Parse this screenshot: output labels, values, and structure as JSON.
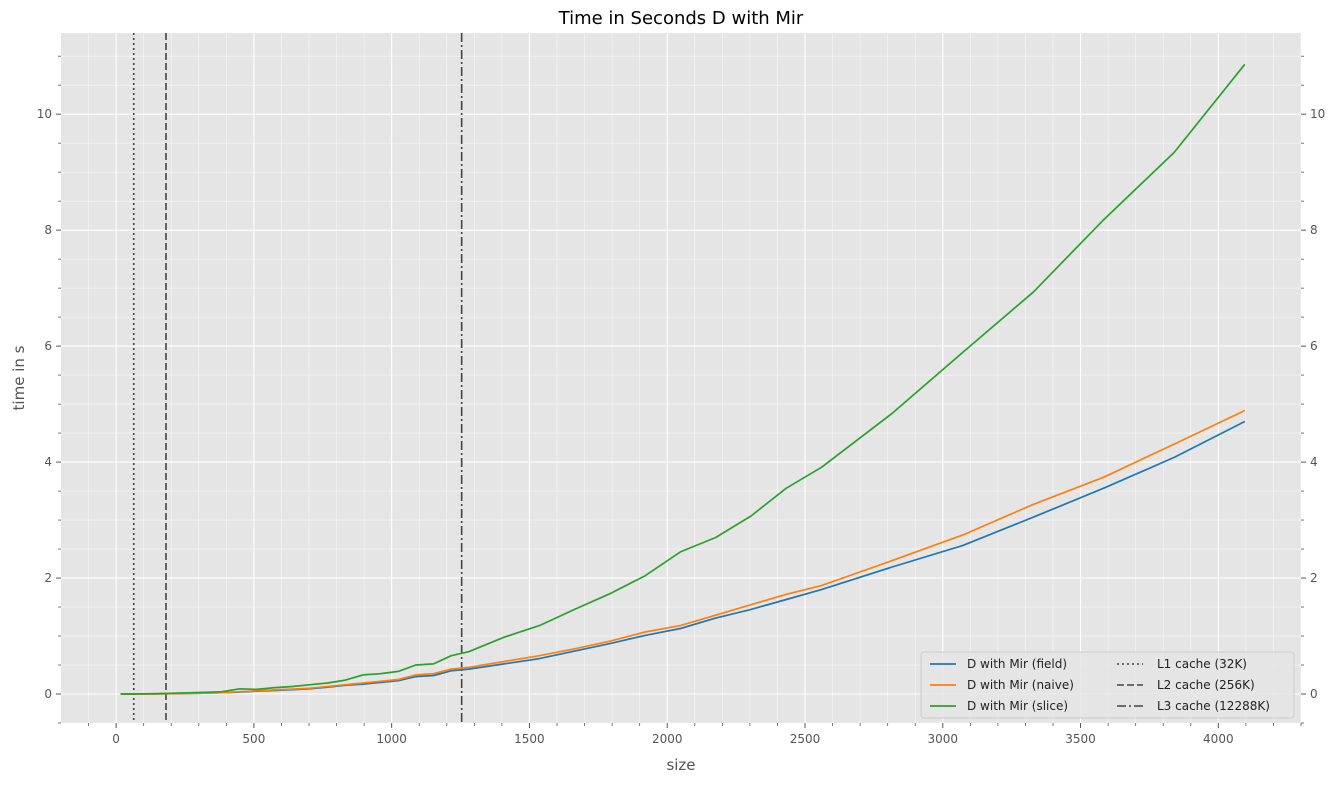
{
  "chart_data": {
    "type": "line",
    "title": "Time in Seconds D with Mir",
    "xlabel": "size",
    "ylabel": "time in s",
    "xlim": [
      -200,
      4300
    ],
    "ylim": [
      -0.5,
      11.4
    ],
    "grid": true,
    "legend_position": "bottom-right",
    "x_ticks": [
      0,
      500,
      1000,
      1500,
      2000,
      2500,
      3000,
      3500,
      4000
    ],
    "x_tick_labels": [
      "0",
      "500",
      "1000",
      "1500",
      "2000",
      "2500",
      "3000",
      "3500",
      "4000"
    ],
    "y_ticks": [
      0,
      2,
      4,
      6,
      8,
      10
    ],
    "y_tick_labels": [
      "0",
      "2",
      "4",
      "6",
      "8",
      "10"
    ],
    "series": [
      {
        "name": "D with Mir (field)",
        "color": "#1f77b4",
        "x": [
          16,
          64,
          128,
          192,
          256,
          320,
          384,
          448,
          512,
          576,
          640,
          704,
          768,
          832,
          896,
          960,
          1024,
          1088,
          1152,
          1216,
          1280,
          1408,
          1536,
          1664,
          1792,
          1920,
          2048,
          2176,
          2304,
          2432,
          2560,
          2816,
          3072,
          3328,
          3584,
          3840,
          4096
        ],
        "y": [
          0.0,
          0.0,
          0.0,
          0.005,
          0.01,
          0.015,
          0.025,
          0.035,
          0.05,
          0.06,
          0.075,
          0.09,
          0.12,
          0.15,
          0.17,
          0.2,
          0.23,
          0.3,
          0.32,
          0.4,
          0.43,
          0.52,
          0.61,
          0.74,
          0.87,
          1.01,
          1.13,
          1.31,
          1.46,
          1.63,
          1.8,
          2.19,
          2.56,
          3.05,
          3.55,
          4.08,
          4.7
        ]
      },
      {
        "name": "D with Mir (naive)",
        "color": "#ff7f0e",
        "x": [
          16,
          64,
          128,
          192,
          256,
          320,
          384,
          448,
          512,
          576,
          640,
          704,
          768,
          832,
          896,
          960,
          1024,
          1088,
          1152,
          1216,
          1280,
          1408,
          1536,
          1664,
          1792,
          1920,
          2048,
          2176,
          2304,
          2432,
          2560,
          2816,
          3072,
          3328,
          3584,
          3840,
          4096
        ],
        "y": [
          0.0,
          0.0,
          0.0,
          0.005,
          0.01,
          0.015,
          0.025,
          0.04,
          0.055,
          0.07,
          0.085,
          0.1,
          0.13,
          0.16,
          0.19,
          0.22,
          0.25,
          0.33,
          0.35,
          0.43,
          0.46,
          0.56,
          0.66,
          0.78,
          0.91,
          1.07,
          1.18,
          1.36,
          1.54,
          1.72,
          1.87,
          2.3,
          2.74,
          3.27,
          3.74,
          4.31,
          4.89
        ]
      },
      {
        "name": "D with Mir (slice)",
        "color": "#2ca02c",
        "x": [
          16,
          64,
          128,
          192,
          256,
          320,
          384,
          448,
          512,
          576,
          640,
          704,
          768,
          832,
          896,
          960,
          1024,
          1088,
          1152,
          1216,
          1280,
          1408,
          1536,
          1664,
          1792,
          1920,
          2048,
          2176,
          2304,
          2432,
          2560,
          2816,
          3072,
          3328,
          3584,
          3840,
          4096
        ],
        "y": [
          0.0,
          0.0,
          0.005,
          0.01,
          0.02,
          0.03,
          0.04,
          0.09,
          0.08,
          0.11,
          0.13,
          0.16,
          0.19,
          0.24,
          0.33,
          0.35,
          0.39,
          0.5,
          0.52,
          0.66,
          0.73,
          0.98,
          1.18,
          1.46,
          1.73,
          2.04,
          2.45,
          2.7,
          3.07,
          3.55,
          3.91,
          4.84,
          5.89,
          6.93,
          8.18,
          9.34,
          10.86
        ]
      }
    ],
    "cache_lines": [
      {
        "name": "L1 cache (32K)",
        "x": 64,
        "style": "dotted",
        "color": "#444444"
      },
      {
        "name": "L2 cache (256K)",
        "x": 181,
        "style": "dashed",
        "color": "#444444"
      },
      {
        "name": "L3 cache (12288K)",
        "x": 1254,
        "style": "dashdot",
        "color": "#444444"
      }
    ]
  }
}
